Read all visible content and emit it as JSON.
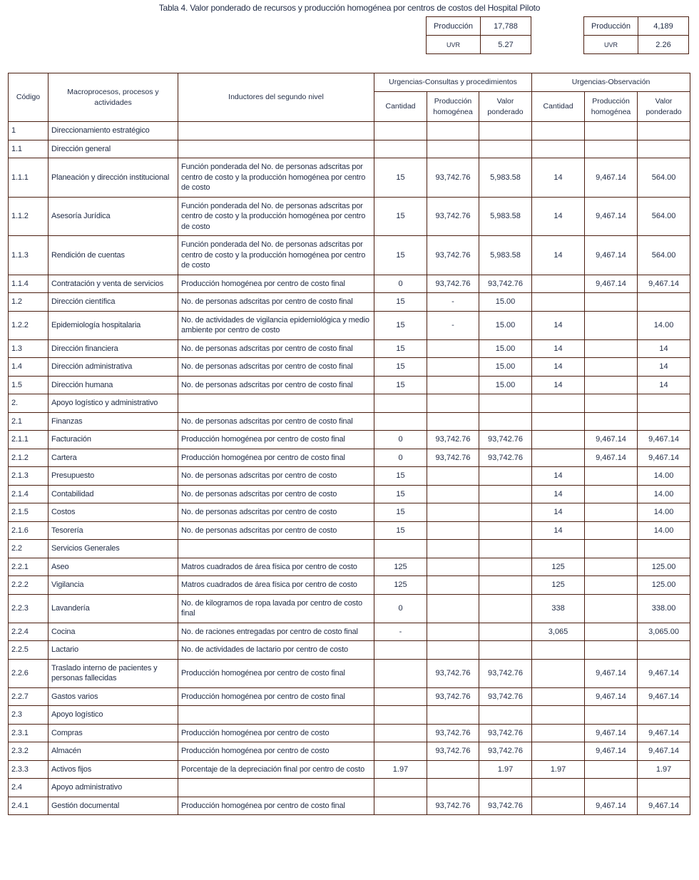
{
  "title": "Tabla 4. Valor ponderado de recursos y producción homogénea por centros de costos del Hospital Piloto",
  "summary_left": {
    "produccion_label": "Producción",
    "produccion": "17,788",
    "uvr_label": "UVR",
    "uvr": "5.27"
  },
  "summary_right": {
    "produccion_label": "Producción",
    "produccion": "4,189",
    "uvr_label": "UVR",
    "uvr": "2.26"
  },
  "headers": {
    "codigo": "Código",
    "macro": "Macroprocesos, procesos y actividades",
    "inductores": "Inductores del segundo nivel",
    "group1": "Urgencias-Consultas y procedimientos",
    "group2": "Urgencias-Observación",
    "cantidad": "Cantidad",
    "produccion": "Producción homogénea",
    "valor": "Valor ponderado"
  },
  "rows": [
    [
      "1",
      "Direccionamiento estratégico",
      "",
      "",
      "",
      "",
      "",
      "",
      ""
    ],
    [
      "1.1",
      "Dirección general",
      "",
      "",
      "",
      "",
      "",
      "",
      ""
    ],
    [
      "1.1.1",
      "Planeación y dirección institucional",
      "Función ponderada del No. de personas adscritas por centro de costo y la producción homogénea por centro de costo",
      "15",
      "93,742.76",
      "5,983.58",
      "14",
      "9,467.14",
      "564.00"
    ],
    [
      "1.1.2",
      "Asesoría Jurídica",
      "Función ponderada del No. de personas adscritas por centro de costo y la producción homogénea por centro de costo",
      "15",
      "93,742.76",
      "5,983.58",
      "14",
      "9,467.14",
      "564.00"
    ],
    [
      "1.1.3",
      "Rendición de cuentas",
      "Función ponderada del No. de personas adscritas por centro de costo y la producción homogénea por centro de costo",
      "15",
      "93,742.76",
      "5,983.58",
      "14",
      "9,467.14",
      "564.00"
    ],
    [
      "1.1.4",
      "Contratación y venta de servicios",
      "Producción homogénea por centro de costo final",
      "0",
      "93,742.76",
      "93,742.76",
      "",
      "9,467.14",
      "9,467.14"
    ],
    [
      "1.2",
      "Dirección científica",
      "No. de personas adscritas por centro de costo final",
      "15",
      "-",
      "15.00",
      "",
      "",
      ""
    ],
    [
      "1.2.2",
      "Epidemiología hospitalaria",
      "No. de actividades de vigilancia epidemiológica y medio ambiente por centro de costo",
      "15",
      "-",
      "15.00",
      "14",
      "",
      "14.00"
    ],
    [
      "1.3",
      "Dirección financiera",
      "No. de personas adscritas por centro de costo final",
      "15",
      "",
      "15.00",
      "14",
      "",
      "14"
    ],
    [
      "1.4",
      "Dirección administrativa",
      "No. de personas adscritas por centro de costo final",
      "15",
      "",
      "15.00",
      "14",
      "",
      "14"
    ],
    [
      "1.5",
      "Dirección humana",
      "No. de personas adscritas por centro de costo final",
      "15",
      "",
      "15.00",
      "14",
      "",
      "14"
    ],
    [
      "2.",
      "Apoyo logístico y administrativo",
      "",
      "",
      "",
      "",
      "",
      "",
      ""
    ],
    [
      "2.1",
      "Finanzas",
      "No. de personas adscritas por centro de costo final",
      "",
      "",
      "",
      "",
      "",
      ""
    ],
    [
      "2.1.1",
      "Facturación",
      "Producción homogénea por centro de costo final",
      "0",
      "93,742.76",
      "93,742.76",
      "",
      "9,467.14",
      "9,467.14"
    ],
    [
      "2.1.2",
      "Cartera",
      "Producción homogénea por centro de costo final",
      "0",
      "93,742.76",
      "93,742.76",
      "",
      "9,467.14",
      "9,467.14"
    ],
    [
      "2.1.3",
      "Presupuesto",
      "No. de personas adscritas por centro de costo",
      "15",
      "",
      "",
      "14",
      "",
      "14.00"
    ],
    [
      "2.1.4",
      "Contabilidad",
      "No. de personas adscritas por centro de costo",
      "15",
      "",
      "",
      "14",
      "",
      "14.00"
    ],
    [
      "2.1.5",
      "Costos",
      "No. de personas adscritas por centro de costo",
      "15",
      "",
      "",
      "14",
      "",
      "14.00"
    ],
    [
      "2.1.6",
      "Tesorería",
      "No. de personas adscritas por centro de costo",
      "15",
      "",
      "",
      "14",
      "",
      "14.00"
    ],
    [
      "2.2",
      "Servicios Generales",
      "",
      "",
      "",
      "",
      "",
      "",
      ""
    ],
    [
      "2.2.1",
      "Aseo",
      "Matros cuadrados de área física por centro de costo",
      "125",
      "",
      "",
      "125",
      "",
      "125.00"
    ],
    [
      "2.2.2",
      "Vigilancia",
      "Matros cuadrados de área física por centro de costo",
      "125",
      "",
      "",
      "125",
      "",
      "125.00"
    ],
    [
      "2.2.3",
      "Lavandería",
      "No. de kilogramos de ropa lavada por centro de costo final",
      "0",
      "",
      "",
      "338",
      "",
      "338.00"
    ],
    [
      "2.2.4",
      "Cocina",
      "No. de raciones entregadas por centro de costo final",
      "-",
      "",
      "",
      "3,065",
      "",
      "3,065.00"
    ],
    [
      "2.2.5",
      "Lactario",
      "No. de actividades de lactario por centro de costo",
      "",
      "",
      "",
      "",
      "",
      ""
    ],
    [
      "2.2.6",
      "Traslado interno de pacientes y personas fallecidas",
      "Producción homogénea por centro de costo final",
      "",
      "93,742.76",
      "93,742.76",
      "",
      "9,467.14",
      "9,467.14"
    ],
    [
      "2.2.7",
      "Gastos varios",
      "Producción homogénea por centro de costo final",
      "",
      "93,742.76",
      "93,742.76",
      "",
      "9,467.14",
      "9,467.14"
    ],
    [
      "2.3",
      "Apoyo logístico",
      "",
      "",
      "",
      "",
      "",
      "",
      ""
    ],
    [
      "2.3.1",
      "Compras",
      "Producción homogénea por centro de costo",
      "",
      "93,742.76",
      "93,742.76",
      "",
      "9,467.14",
      "9,467.14"
    ],
    [
      "2.3.2",
      "Almacén",
      "Producción homogénea por centro de costo",
      "",
      "93,742.76",
      "93,742.76",
      "",
      "9,467.14",
      "9,467.14"
    ],
    [
      "2.3.3",
      "Activos fijos",
      "Porcentaje de la depreciación final por centro de costo",
      "1.97",
      "",
      "1.97",
      "1.97",
      "",
      "1.97"
    ],
    [
      "2.4",
      "Apoyo administrativo",
      "",
      "",
      "",
      "",
      "",
      "",
      ""
    ],
    [
      "2.4.1",
      "Gestión documental",
      "Producción homogénea por centro de costo final",
      "",
      "93,742.76",
      "93,742.76",
      "",
      "9,467.14",
      "9,467.14"
    ]
  ]
}
